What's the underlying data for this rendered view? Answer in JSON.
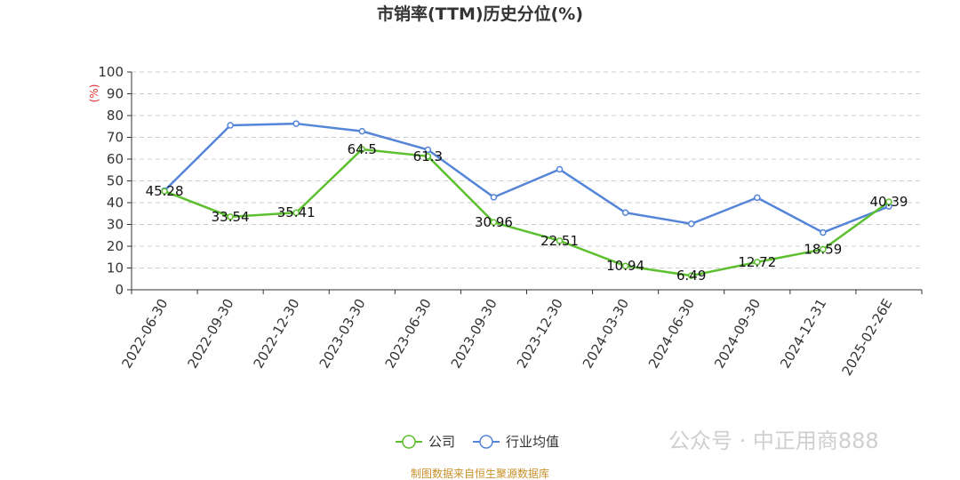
{
  "chart_data": {
    "type": "line",
    "title": "市销率(TTM)历史分位(%)",
    "ylabel": "(%)",
    "ylim": [
      0,
      100
    ],
    "yticks": [
      0,
      10,
      20,
      30,
      40,
      50,
      60,
      70,
      80,
      90,
      100
    ],
    "grid": true,
    "legend_position": "bottom",
    "categories": [
      "2022-06-30",
      "2022-09-30",
      "2022-12-30",
      "2023-03-30",
      "2023-06-30",
      "2023-09-30",
      "2023-12-30",
      "2024-03-30",
      "2024-06-30",
      "2024-09-30",
      "2024-12-31",
      "2025-02-26E"
    ],
    "series": [
      {
        "name": "公司",
        "color": "#5cc02e",
        "values": [
          45.28,
          33.54,
          35.41,
          64.5,
          61.3,
          30.96,
          22.51,
          10.94,
          6.49,
          12.72,
          18.59,
          40.39
        ],
        "labels": [
          "45.28",
          "33.54",
          "35.41",
          "64.5",
          "61.3",
          "30.96",
          "22.51",
          "10.94",
          "6.49",
          "12.72",
          "18.59",
          "40.39"
        ]
      },
      {
        "name": "行业均值",
        "color": "#5585d8",
        "values": [
          45.5,
          75.5,
          76.3,
          72.8,
          64.3,
          42.5,
          55.3,
          35.4,
          30.3,
          42.3,
          26.3,
          38.3
        ]
      }
    ]
  },
  "source_note": "制图数据来自恒生聚源数据库",
  "watermark": "公众号 · 中正用商888",
  "colors": {
    "axis": "#333333",
    "grid": "#cccccc",
    "unit": "#e03030",
    "source": "#c8902a"
  }
}
